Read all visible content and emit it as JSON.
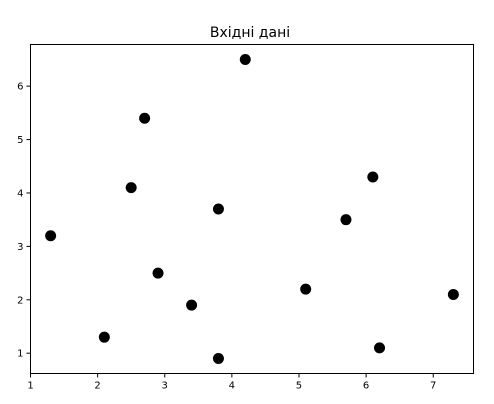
{
  "chart_data": {
    "type": "scatter",
    "title": "Вхідні дані",
    "xlabel": "",
    "ylabel": "",
    "xlim": [
      1.0,
      7.6
    ],
    "ylim": [
      0.62,
      6.78
    ],
    "x_ticks": [
      1,
      2,
      3,
      4,
      5,
      6,
      7
    ],
    "y_ticks": [
      1,
      2,
      3,
      4,
      5,
      6
    ],
    "grid": false,
    "marker_color": "#000000",
    "points": [
      {
        "x": 1.3,
        "y": 3.2
      },
      {
        "x": 2.1,
        "y": 1.3
      },
      {
        "x": 2.5,
        "y": 4.1
      },
      {
        "x": 2.7,
        "y": 5.4
      },
      {
        "x": 2.9,
        "y": 2.5
      },
      {
        "x": 3.4,
        "y": 1.9
      },
      {
        "x": 3.8,
        "y": 3.7
      },
      {
        "x": 3.8,
        "y": 0.9
      },
      {
        "x": 4.2,
        "y": 6.5
      },
      {
        "x": 5.1,
        "y": 2.2
      },
      {
        "x": 5.7,
        "y": 3.5
      },
      {
        "x": 6.1,
        "y": 4.3
      },
      {
        "x": 6.2,
        "y": 1.1
      },
      {
        "x": 7.3,
        "y": 2.1
      }
    ]
  }
}
